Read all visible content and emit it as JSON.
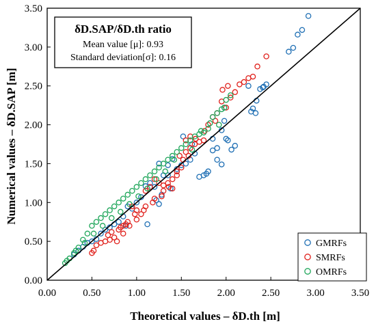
{
  "chart_data": {
    "type": "scatter",
    "xlabel": "Theoretical values – δD.th [m]",
    "ylabel": "Numerical values – δD.SAP [m]",
    "xlim": [
      0,
      3.5
    ],
    "ylim": [
      0,
      3.5
    ],
    "xticks": [
      "0.00",
      "0.50",
      "1.00",
      "1.50",
      "2.00",
      "2.50",
      "3.00",
      "3.50"
    ],
    "yticks": [
      "0.00",
      "0.50",
      "1.00",
      "1.50",
      "2.00",
      "2.50",
      "3.00",
      "3.50"
    ],
    "reference_line": {
      "x": [
        0,
        3.5
      ],
      "y": [
        0,
        3.5
      ]
    },
    "grid": false,
    "legend_position": "bottom-right",
    "annotation": {
      "title": "δD.SAP/δD.th ratio",
      "lines": [
        "Mean value [μ]: 0.93",
        "Standard deviation[σ]: 0.16"
      ]
    },
    "series": [
      {
        "name": "GMRFs",
        "color": "#1f6fb4",
        "x": [
          2.92,
          2.85,
          2.8,
          2.75,
          2.7,
          2.45,
          2.42,
          2.38,
          2.34,
          2.3,
          2.28,
          2.25,
          2.1,
          2.06,
          2.02,
          2.0,
          1.98,
          1.95,
          1.9,
          1.85,
          1.8,
          1.78,
          1.75,
          1.7,
          1.65,
          1.6,
          1.55,
          1.5,
          1.45,
          1.4,
          1.35,
          1.3,
          1.28,
          1.25,
          1.22,
          1.2,
          1.15,
          1.1,
          1.05,
          1.0,
          0.95,
          0.9,
          0.85,
          0.8,
          0.75,
          0.7,
          0.65,
          0.6,
          0.55,
          0.5,
          0.45,
          0.4,
          0.35,
          0.3,
          1.95,
          1.9,
          1.85,
          1.52,
          1.45,
          1.35,
          1.25,
          1.12,
          2.33,
          2.41,
          1.98,
          1.62,
          1.38,
          0.88
        ],
        "y": [
          3.4,
          3.22,
          3.16,
          2.99,
          2.94,
          2.52,
          2.49,
          2.46,
          2.31,
          2.21,
          2.17,
          2.5,
          1.73,
          1.68,
          1.8,
          1.82,
          2.05,
          1.93,
          1.55,
          1.82,
          1.4,
          1.37,
          1.35,
          1.33,
          1.63,
          1.55,
          1.5,
          1.48,
          1.43,
          1.56,
          1.48,
          1.35,
          1.1,
          0.98,
          1.03,
          1.2,
          1.25,
          1.21,
          1.07,
          1.0,
          0.92,
          0.95,
          0.82,
          0.75,
          0.72,
          0.68,
          0.65,
          0.6,
          0.53,
          0.5,
          0.48,
          0.43,
          0.38,
          0.33,
          1.49,
          1.7,
          1.67,
          1.85,
          1.4,
          1.35,
          1.5,
          0.72,
          2.15,
          2.48,
          2.22,
          1.75,
          1.18,
          0.7
        ]
      },
      {
        "name": "SMRFs",
        "color": "#e0201b",
        "x": [
          2.45,
          2.35,
          2.3,
          2.25,
          2.2,
          2.15,
          2.1,
          2.05,
          2.0,
          1.95,
          1.9,
          1.85,
          1.8,
          1.75,
          1.7,
          1.65,
          1.6,
          1.55,
          1.5,
          1.45,
          1.4,
          1.35,
          1.3,
          1.25,
          1.2,
          1.15,
          1.1,
          1.05,
          1.0,
          0.95,
          0.9,
          0.85,
          0.8,
          0.75,
          0.7,
          0.65,
          0.6,
          0.55,
          0.52,
          0.5,
          1.6,
          1.55,
          1.48,
          1.4,
          1.3,
          1.2,
          1.1,
          1.0,
          0.92,
          0.85,
          0.78,
          0.72,
          0.68,
          2.02,
          1.96,
          1.88,
          1.76,
          1.66,
          1.58,
          1.52,
          1.45,
          1.36,
          1.28,
          1.18,
          1.08,
          0.98,
          0.88,
          0.82
        ],
        "y": [
          2.88,
          2.75,
          2.62,
          2.6,
          2.55,
          2.52,
          2.42,
          2.35,
          2.22,
          2.3,
          2.15,
          2.1,
          2.0,
          1.8,
          1.78,
          1.75,
          1.7,
          1.65,
          1.45,
          1.4,
          1.3,
          1.25,
          1.22,
          1.25,
          1.3,
          1.2,
          1.15,
          0.85,
          0.9,
          0.95,
          0.75,
          0.7,
          0.65,
          0.55,
          0.52,
          0.5,
          0.48,
          0.45,
          0.38,
          0.35,
          1.85,
          1.8,
          1.6,
          1.18,
          1.15,
          1.05,
          0.95,
          0.78,
          0.7,
          0.6,
          0.5,
          0.62,
          0.58,
          2.5,
          2.45,
          2.05,
          1.92,
          1.82,
          1.6,
          1.55,
          1.35,
          1.2,
          1.08,
          1.0,
          0.9,
          0.85,
          0.72,
          0.68
        ]
      },
      {
        "name": "OMRFs",
        "color": "#1fa65a",
        "x": [
          2.05,
          2.0,
          1.98,
          1.95,
          1.9,
          1.85,
          1.8,
          1.75,
          1.7,
          1.65,
          1.6,
          1.55,
          1.5,
          1.45,
          1.4,
          1.35,
          1.3,
          1.25,
          1.2,
          1.15,
          1.1,
          1.05,
          1.0,
          0.95,
          0.9,
          0.85,
          0.8,
          0.75,
          0.7,
          0.65,
          0.6,
          0.55,
          0.5,
          0.45,
          0.4,
          0.35,
          0.3,
          0.25,
          0.22,
          0.2,
          1.92,
          1.82,
          1.72,
          1.62,
          1.42,
          1.32,
          1.22,
          1.12,
          1.02,
          0.92,
          0.82,
          0.72,
          0.62,
          0.52,
          0.42,
          0.32
        ],
        "y": [
          2.38,
          2.32,
          2.22,
          2.2,
          2.15,
          2.1,
          1.95,
          1.9,
          1.88,
          1.85,
          1.8,
          1.75,
          1.7,
          1.65,
          1.6,
          1.55,
          1.5,
          1.45,
          1.4,
          1.35,
          1.3,
          1.25,
          1.2,
          1.15,
          1.1,
          1.05,
          1.0,
          0.95,
          0.9,
          0.85,
          0.8,
          0.75,
          0.7,
          0.6,
          0.52,
          0.42,
          0.35,
          0.28,
          0.25,
          0.22,
          2.0,
          2.02,
          1.92,
          1.68,
          1.55,
          1.4,
          1.3,
          1.18,
          1.08,
          0.98,
          0.88,
          0.8,
          0.7,
          0.6,
          0.48,
          0.38
        ]
      }
    ]
  }
}
